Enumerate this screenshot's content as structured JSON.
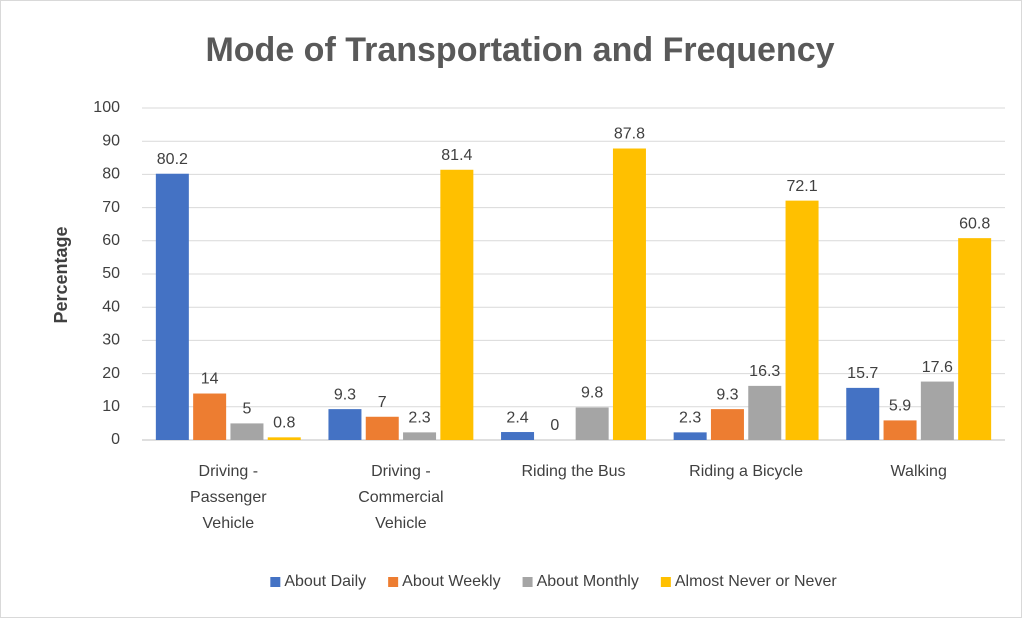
{
  "chart_data": {
    "type": "bar",
    "title": "Mode of Transportation and Frequency",
    "y_label": "Percentage",
    "categories": [
      [
        "Driving -",
        "Passenger",
        "Vehicle"
      ],
      [
        "Driving -",
        "Commercial",
        "Vehicle"
      ],
      [
        "Riding the Bus"
      ],
      [
        "Riding a Bicycle"
      ],
      [
        "Walking"
      ]
    ],
    "series": [
      {
        "name": "About Daily",
        "color": "#4472c4",
        "values": [
          80.2,
          9.3,
          2.4,
          2.3,
          15.7
        ]
      },
      {
        "name": "About Weekly",
        "color": "#ed7d31",
        "values": [
          14,
          7,
          0,
          9.3,
          5.9
        ]
      },
      {
        "name": "About Monthly",
        "color": "#a5a5a5",
        "values": [
          5,
          2.3,
          9.8,
          16.3,
          17.6
        ]
      },
      {
        "name": "Almost Never or Never",
        "color": "#ffc000",
        "values": [
          0.8,
          81.4,
          87.8,
          72.1,
          60.8
        ]
      }
    ],
    "ylim": [
      0,
      100
    ],
    "yticks": [
      0,
      10,
      20,
      30,
      40,
      50,
      60,
      70,
      80,
      90,
      100
    ],
    "grid": true,
    "legend": "bottom"
  }
}
